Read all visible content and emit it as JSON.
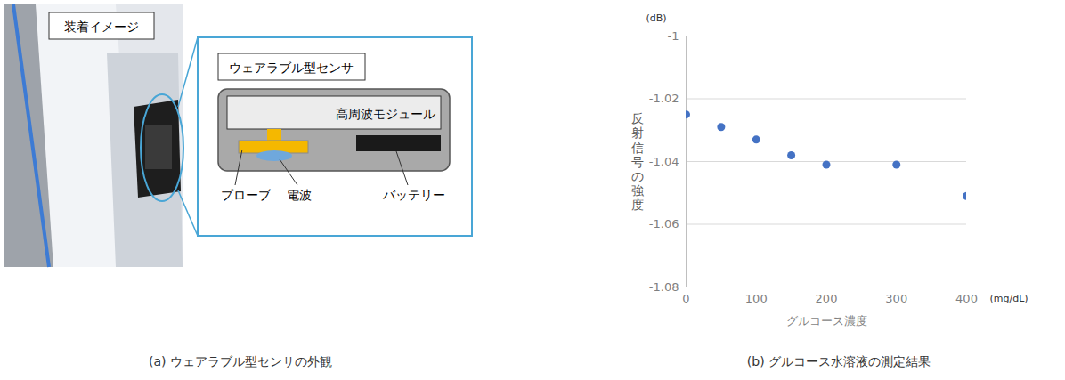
{
  "panel_a": {
    "photo_label": "装着イメージ",
    "sensor": {
      "title": "ウェアラブル型センサ",
      "module": "高周波モジュール",
      "probe": "プローブ",
      "wave": "電波",
      "battery": "バッテリー"
    },
    "caption": "(a) ウェアラブル型センサの外観"
  },
  "chart_data": {
    "type": "scatter",
    "caption": "(b) グルコース水溶液の測定結果",
    "x_label": "グルコース濃度",
    "x_unit": "(mg/dL)",
    "y_label": "反射信号の強度",
    "y_unit": "(dB)",
    "x": [
      0,
      50,
      100,
      150,
      200,
      300,
      400
    ],
    "values": [
      -1.025,
      -1.029,
      -1.033,
      -1.038,
      -1.041,
      -1.041,
      -1.051
    ],
    "color": "#4472c4",
    "marker": "circle",
    "xlim": [
      0,
      400
    ],
    "xticks": [
      0,
      100,
      200,
      300,
      400
    ],
    "ylim": [
      -1.08,
      -1
    ],
    "yticks": [
      -1.08,
      -1.06,
      -1.04,
      -1.02,
      -1
    ],
    "grid": true
  }
}
